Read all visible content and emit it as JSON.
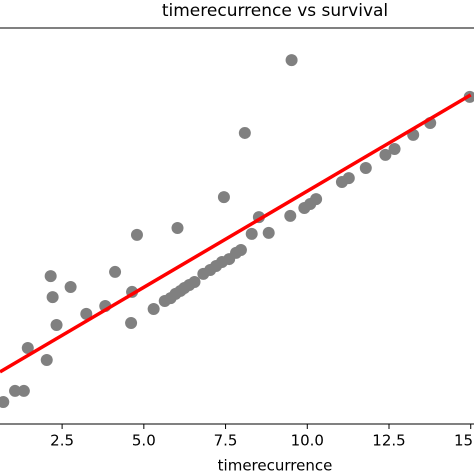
{
  "chart_data": {
    "type": "scatter",
    "title": "timerecurrence vs survival",
    "x_label": "timerecurrence",
    "color": "#808080",
    "x": [
      0.7,
      1.06,
      1.33,
      1.45,
      2.03,
      2.15,
      2.21,
      2.33,
      2.76,
      3.24,
      4.12,
      3.82,
      4.64,
      4.61,
      4.79,
      5.3,
      5.64,
      5.82,
      5.97,
      6.12,
      6.24,
      6.39,
      6.55,
      6.03,
      6.82,
      7.03,
      7.21,
      7.39,
      7.61,
      7.82,
      7.97,
      7.45,
      8.09,
      8.3,
      8.52,
      8.82,
      9.48,
      9.52,
      9.91,
      10.09,
      10.27,
      11.06,
      11.27,
      11.79,
      12.39,
      12.67,
      13.24,
      13.76,
      14.97
    ],
    "values": [
      1.11,
      1.67,
      1.67,
      3.84,
      3.23,
      7.47,
      6.41,
      5.0,
      6.92,
      5.56,
      7.68,
      5.96,
      6.67,
      5.1,
      9.55,
      5.81,
      6.21,
      6.36,
      6.57,
      6.72,
      6.87,
      7.02,
      7.17,
      9.9,
      7.58,
      7.78,
      7.98,
      8.18,
      8.33,
      8.64,
      8.79,
      11.46,
      14.7,
      9.6,
      10.45,
      9.65,
      10.51,
      18.38,
      10.91,
      11.11,
      11.36,
      12.22,
      12.42,
      12.93,
      13.59,
      13.89,
      14.6,
      15.2,
      16.52
    ],
    "fit_line": {
      "x": [
        0.6,
        15.0
      ],
      "values": [
        2.63,
        16.62
      ],
      "color": "#ff0000"
    },
    "xlim": [
      0.6,
      15.1
    ],
    "xticks": [
      2.5,
      {
        "value": 5,
        "label": "5.0"
      },
      7.5,
      {
        "value": 10,
        "label": "10.0"
      },
      12.5,
      {
        "value": 15,
        "label": "15.0"
      }
    ],
    "ylim": [
      0,
      20
    ]
  }
}
